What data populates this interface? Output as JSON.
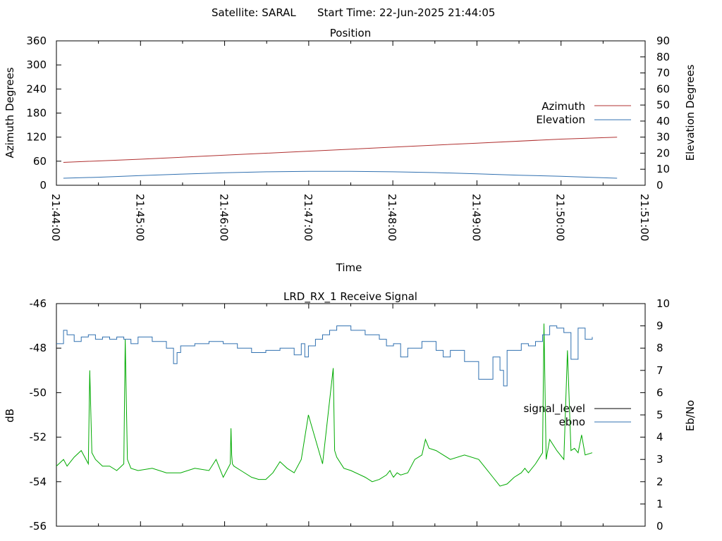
{
  "header": {
    "satellite": "Satellite: SARAL",
    "start_time": "Start Time: 22-Jun-2025 21:44:05"
  },
  "chart_data": [
    {
      "type": "line",
      "title": "Position",
      "xlabel": "Time",
      "ylabel": "Azimuth Degrees",
      "y2label": "Elevation Degrees",
      "xlim": [
        "21:44:00",
        "21:51:00"
      ],
      "ylim": [
        0,
        360
      ],
      "y2lim": [
        0,
        90
      ],
      "x_ticks": [
        "21:44:00",
        "21:45:00",
        "21:46:00",
        "21:47:00",
        "21:48:00",
        "21:49:00",
        "21:50:00",
        "21:51:00"
      ],
      "y_ticks": [
        "0",
        "60",
        "120",
        "180",
        "240",
        "300",
        "360"
      ],
      "y2_ticks": [
        "0",
        "10",
        "20",
        "30",
        "40",
        "50",
        "60",
        "70",
        "80",
        "90"
      ],
      "legend_position": "right",
      "series": [
        {
          "name": "Azimuth",
          "color": "#b03030",
          "axis": "y",
          "x": [
            "21:44:05",
            "21:45:00",
            "21:46:00",
            "21:47:00",
            "21:48:00",
            "21:49:00",
            "21:50:00",
            "21:50:40"
          ],
          "values": [
            57,
            65,
            75,
            85,
            95,
            105,
            115,
            120
          ]
        },
        {
          "name": "Elevation",
          "color": "#3070b0",
          "axis": "y2",
          "x": [
            "21:44:05",
            "21:44:30",
            "21:45:00",
            "21:45:30",
            "21:46:00",
            "21:46:30",
            "21:47:00",
            "21:47:30",
            "21:48:00",
            "21:48:30",
            "21:49:00",
            "21:49:30",
            "21:50:00",
            "21:50:40"
          ],
          "values": [
            4.4,
            5.0,
            6.0,
            7.0,
            7.8,
            8.4,
            8.7,
            8.7,
            8.4,
            7.9,
            7.1,
            6.3,
            5.6,
            4.4
          ]
        }
      ]
    },
    {
      "type": "line",
      "title": "LRD_RX_1 Receive Signal",
      "ylabel": "dB",
      "y2label": "Eb/No",
      "ylim": [
        -56,
        -46
      ],
      "y2lim": [
        0,
        10
      ],
      "y_ticks": [
        "-46",
        "-48",
        "-50",
        "-52",
        "-54",
        "-56"
      ],
      "y2_ticks": [
        "0",
        "1",
        "2",
        "3",
        "4",
        "5",
        "6",
        "7",
        "8",
        "9",
        "10"
      ],
      "legend_position": "right",
      "series": [
        {
          "name": "signal_level",
          "color": "#00aa00",
          "legend_color": "#000000",
          "axis": "y",
          "x_seconds": [
            5,
            15,
            20,
            30,
            40,
            50,
            52,
            55,
            60,
            70,
            80,
            90,
            100,
            102,
            105,
            110,
            120,
            140,
            160,
            180,
            200,
            220,
            230,
            240,
            250,
            251,
            252,
            253,
            255,
            265,
            280,
            290,
            300,
            310,
            320,
            330,
            340,
            350,
            360,
            380,
            395,
            397,
            400,
            410,
            420,
            440,
            450,
            460,
            470,
            475,
            478,
            480,
            485,
            490,
            500,
            510,
            520,
            525,
            530,
            540,
            560,
            580,
            600,
            610,
            620,
            630,
            640,
            650,
            660,
            665,
            670,
            680,
            690,
            692,
            695,
            700,
            710,
            720,
            725,
            730,
            735,
            740,
            745,
            750,
            760
          ],
          "values": [
            -53.3,
            -53.0,
            -53.3,
            -52.9,
            -52.6,
            -53.2,
            -49.0,
            -52.7,
            -53.0,
            -53.3,
            -53.3,
            -53.5,
            -53.2,
            -47.6,
            -53.0,
            -53.4,
            -53.5,
            -53.4,
            -53.6,
            -53.6,
            -53.4,
            -53.5,
            -53.0,
            -53.8,
            -53.2,
            -51.6,
            -52.8,
            -53.2,
            -53.3,
            -53.5,
            -53.8,
            -53.9,
            -53.9,
            -53.6,
            -53.1,
            -53.4,
            -53.6,
            -53.0,
            -51.0,
            -53.2,
            -48.9,
            -52.6,
            -52.9,
            -53.4,
            -53.5,
            -53.8,
            -54.0,
            -53.9,
            -53.7,
            -53.5,
            -53.7,
            -53.8,
            -53.6,
            -53.7,
            -53.6,
            -53.0,
            -52.8,
            -52.1,
            -52.5,
            -52.6,
            -53.0,
            -52.8,
            -53.0,
            -53.4,
            -53.8,
            -54.2,
            -54.1,
            -53.8,
            -53.6,
            -53.4,
            -53.6,
            -53.2,
            -52.7,
            -46.9,
            -53.0,
            -52.1,
            -52.6,
            -53.0,
            -48.1,
            -52.6,
            -52.5,
            -52.7,
            -51.9,
            -52.8,
            -52.7
          ]
        },
        {
          "name": "ebno",
          "color": "#3070b0",
          "axis": "y2",
          "x_seconds": [
            5,
            15,
            20,
            30,
            40,
            50,
            60,
            70,
            80,
            90,
            100,
            110,
            120,
            140,
            160,
            170,
            175,
            180,
            200,
            220,
            240,
            260,
            280,
            300,
            320,
            340,
            350,
            355,
            360,
            370,
            380,
            390,
            400,
            420,
            440,
            460,
            470,
            480,
            490,
            500,
            520,
            540,
            550,
            560,
            580,
            600,
            620,
            630,
            635,
            640,
            660,
            670,
            680,
            690,
            700,
            710,
            720,
            730,
            740,
            750,
            760
          ],
          "values": [
            8.2,
            8.8,
            8.6,
            8.3,
            8.5,
            8.6,
            8.4,
            8.5,
            8.4,
            8.5,
            8.4,
            8.2,
            8.5,
            8.3,
            8.0,
            7.3,
            7.8,
            8.1,
            8.2,
            8.3,
            8.2,
            8.0,
            7.8,
            7.9,
            8.0,
            7.7,
            8.2,
            7.6,
            8.1,
            8.4,
            8.6,
            8.8,
            9.0,
            8.8,
            8.6,
            8.4,
            8.1,
            8.2,
            7.6,
            8.0,
            8.3,
            7.9,
            7.6,
            7.9,
            7.4,
            6.6,
            7.6,
            7.0,
            6.3,
            7.9,
            8.2,
            8.1,
            8.3,
            8.6,
            9.0,
            8.9,
            8.7,
            7.5,
            8.9,
            8.4,
            8.5
          ]
        }
      ]
    }
  ]
}
